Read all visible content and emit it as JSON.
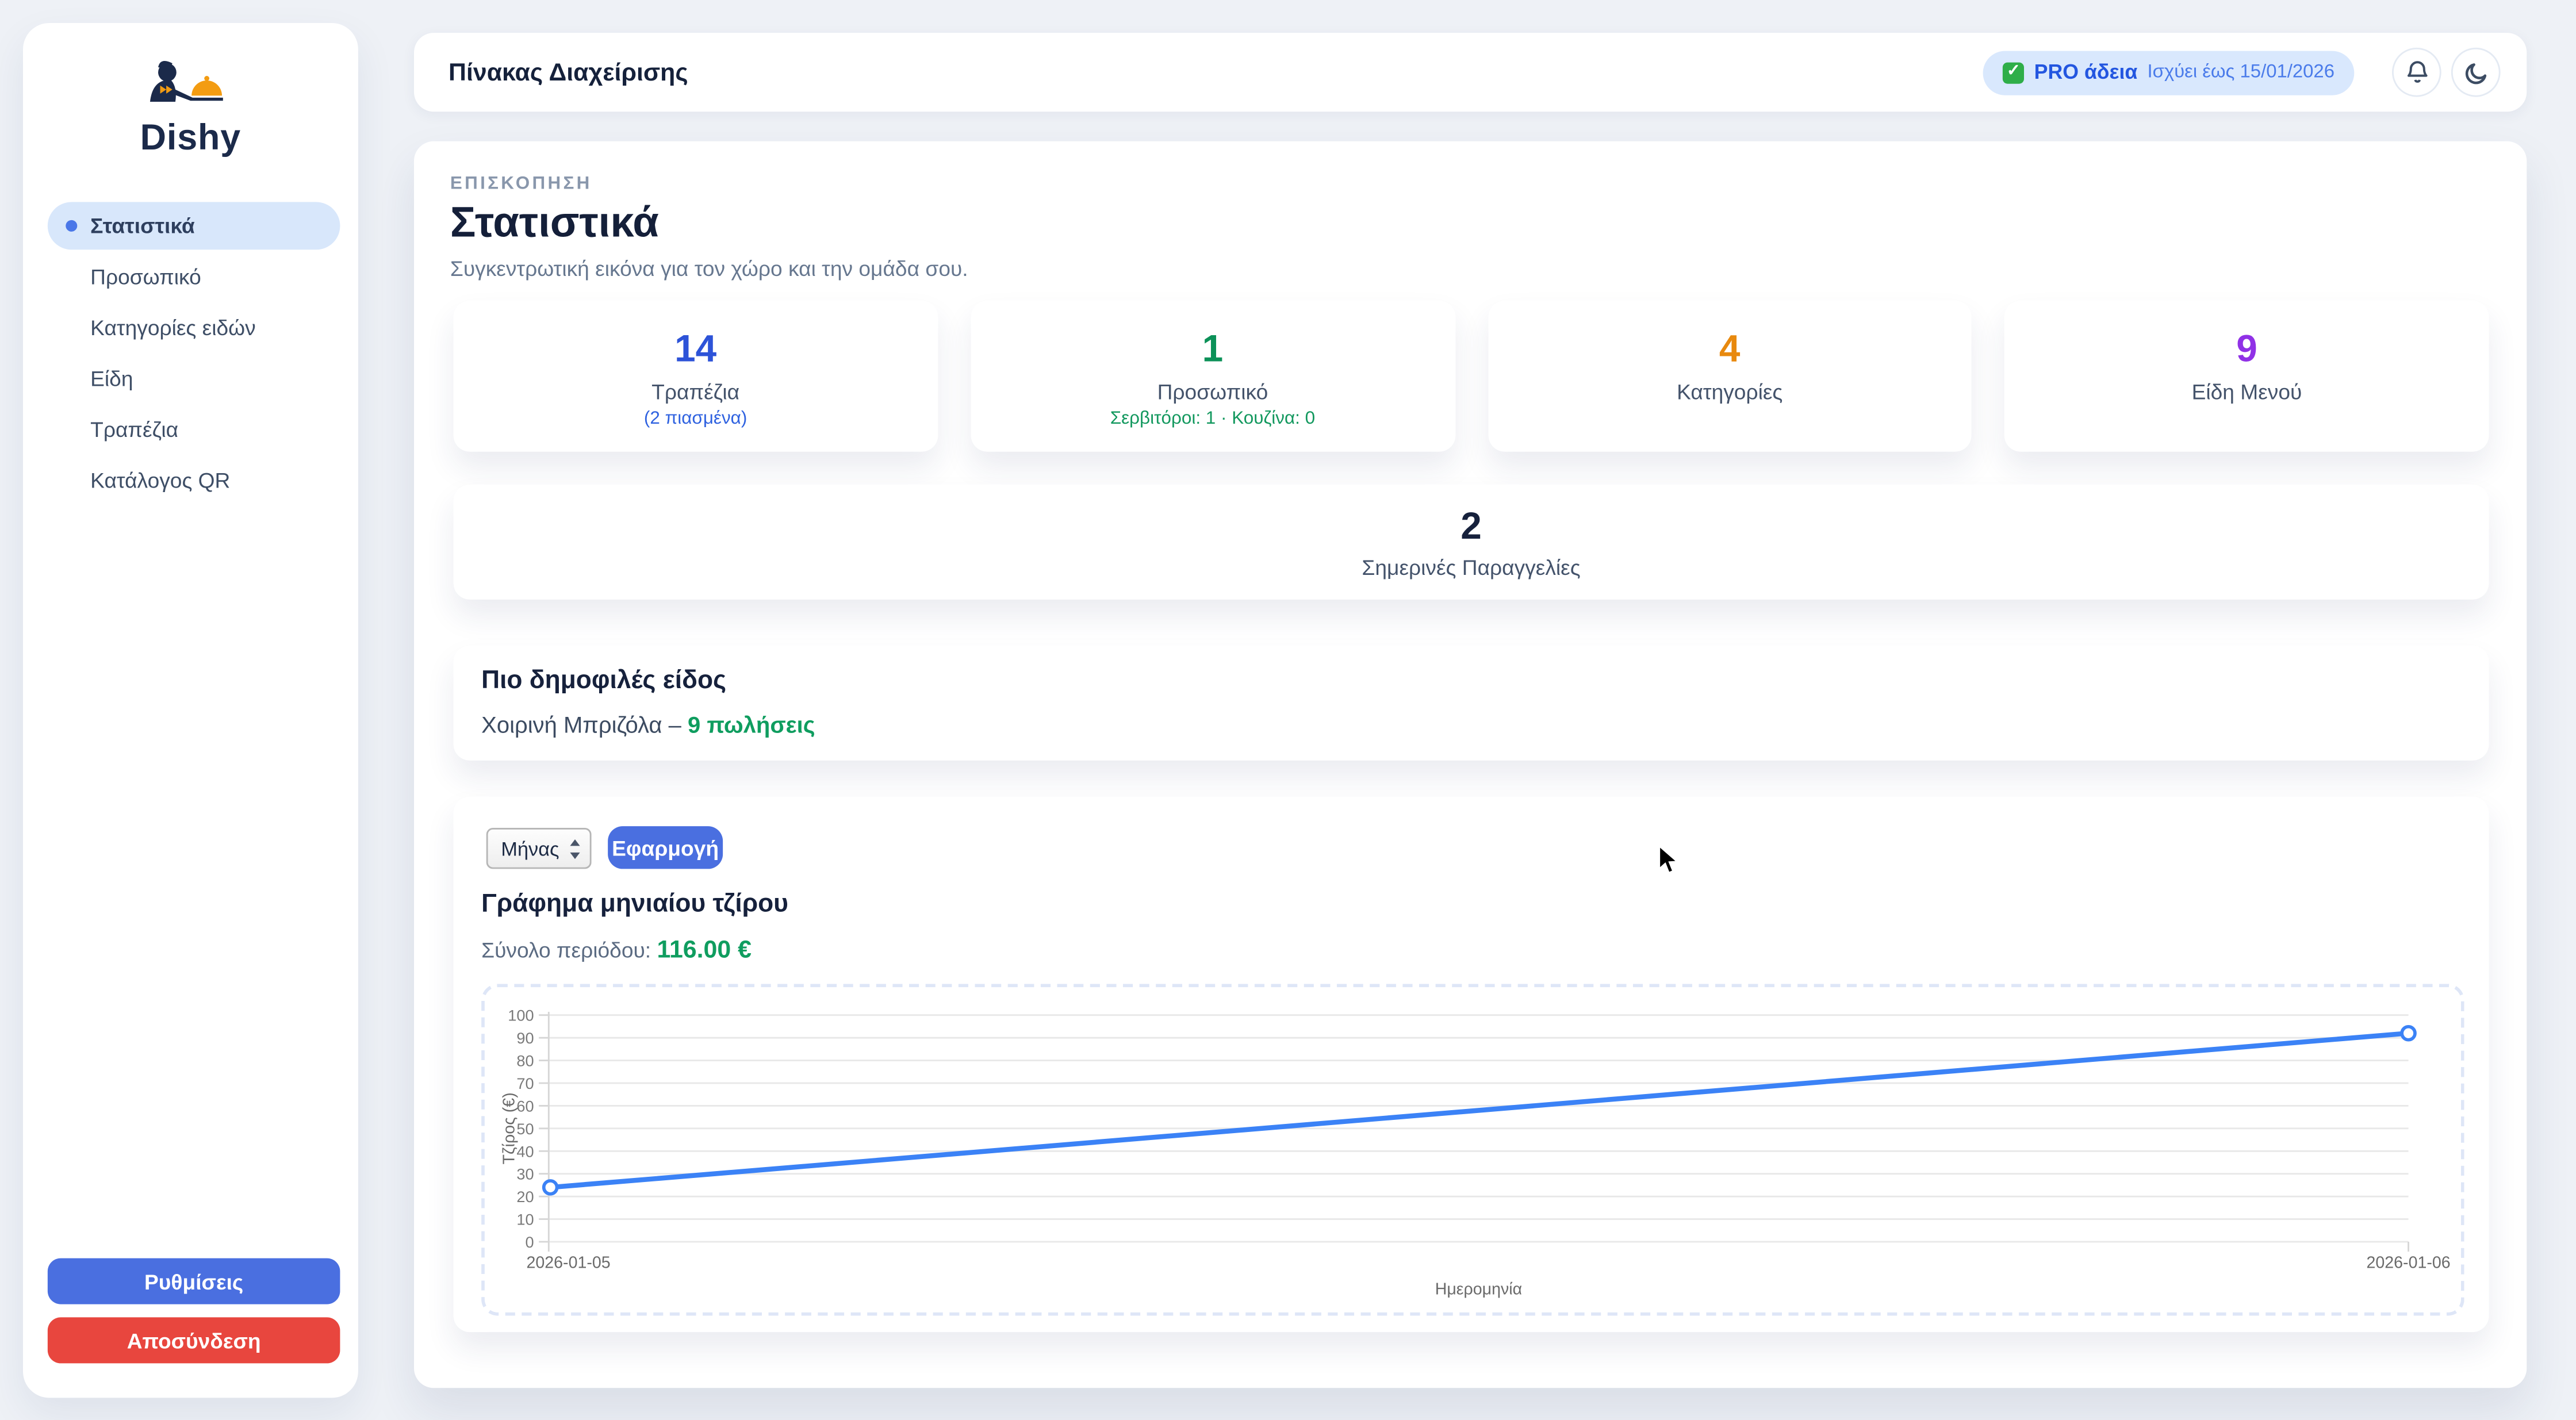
{
  "app": {
    "name": "Dishy"
  },
  "sidebar": {
    "items": [
      {
        "label": "Στατιστικά",
        "active": true
      },
      {
        "label": "Προσωπικό",
        "active": false
      },
      {
        "label": "Κατηγορίες ειδών",
        "active": false
      },
      {
        "label": "Είδη",
        "active": false
      },
      {
        "label": "Τραπέζια",
        "active": false
      },
      {
        "label": "Κατάλογος QR",
        "active": false
      }
    ],
    "settings_label": "Ρυθμίσεις",
    "logout_label": "Αποσύνδεση"
  },
  "header": {
    "title": "Πίνακας Διαχείρισης",
    "license_badge": {
      "check": "✓",
      "label": "PRO άδεια",
      "valid_until": "Ισχύει έως 15/01/2026"
    }
  },
  "overview": {
    "eyebrow": "ΕΠΙΣΚΟΠΗΣΗ",
    "title": "Στατιστικά",
    "subtitle": "Συγκεντρωτική εικόνα για τον χώρο και την ομάδα σου.",
    "stats": [
      {
        "value": "14",
        "label": "Τραπέζια",
        "sub": "(2 πιασμένα)",
        "color": "#2d53d8",
        "sub_color": "#2f62e0"
      },
      {
        "value": "1",
        "label": "Προσωπικό",
        "sub": "Σερβιτόροι: 1 · Κουζίνα: 0",
        "color": "#0c9158",
        "sub_color": "#12985e"
      },
      {
        "value": "4",
        "label": "Κατηγορίες",
        "sub": "",
        "color": "#e8890e",
        "sub_color": "#e8890e"
      },
      {
        "value": "9",
        "label": "Είδη Μενού",
        "sub": "",
        "color": "#9031e6",
        "sub_color": "#9031e6"
      }
    ],
    "orders_today": {
      "value": "2",
      "label": "Σημερινές Παραγγελίες"
    },
    "popular": {
      "title": "Πιο δημοφιλές είδος",
      "item": "Χοιρινή Μπριζόλα – ",
      "sales": "9 πωλήσεις"
    }
  },
  "chart_section": {
    "period_select_value": "Μήνας",
    "apply_label": "Εφαρμογή",
    "title": "Γράφημα μηνιαίου τζίρου",
    "total_label": "Σύνολο περιόδου:",
    "total_value": "116.00 €"
  },
  "chart_data": {
    "type": "line",
    "title": "Γράφημα μηνιαίου τζίρου",
    "x": [
      "2026-01-05",
      "2026-01-06"
    ],
    "values": [
      24,
      92
    ],
    "xlabel": "Ημερομηνία",
    "ylabel": "Τζίρος (€)",
    "ylim": [
      0,
      100
    ],
    "ytick_step": 10,
    "line_color": "#3b82f6",
    "grid": true,
    "legend": false
  }
}
